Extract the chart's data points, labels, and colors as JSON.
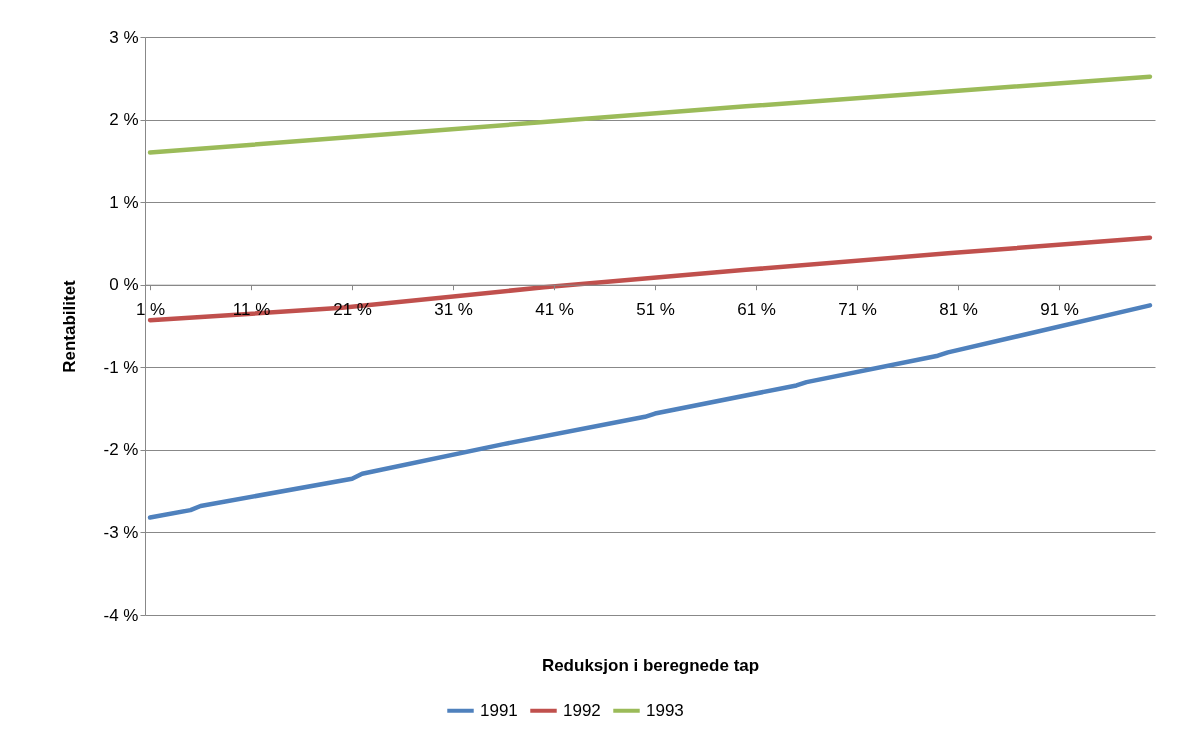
{
  "chart_data": {
    "type": "line",
    "xlabel": "Reduksjon i beregnede tap",
    "ylabel": "Rentabilitet",
    "xlim": [
      0.5,
      100.5
    ],
    "xticks": [
      {
        "value": 1,
        "label": "1 %"
      },
      {
        "value": 11,
        "label": "11 %"
      },
      {
        "value": 21,
        "label": "21 %"
      },
      {
        "value": 31,
        "label": "31 %"
      },
      {
        "value": 41,
        "label": "41 %"
      },
      {
        "value": 51,
        "label": "51 %"
      },
      {
        "value": 61,
        "label": "61 %"
      },
      {
        "value": 71,
        "label": "71 %"
      },
      {
        "value": 81,
        "label": "81 %"
      },
      {
        "value": 91,
        "label": "91 %"
      }
    ],
    "ylim": [
      -4,
      3
    ],
    "yticks": [
      {
        "value": -4,
        "label": "-4 %"
      },
      {
        "value": -3,
        "label": "-3 %"
      },
      {
        "value": -2,
        "label": "-2 %"
      },
      {
        "value": -1,
        "label": "-1 %"
      },
      {
        "value": 0,
        "label": "0 %"
      },
      {
        "value": 1,
        "label": "1 %"
      },
      {
        "value": 2,
        "label": "2 %"
      },
      {
        "value": 3,
        "label": "3 %"
      }
    ],
    "grid": "y",
    "legend": "bottom",
    "marker": "none",
    "line_style": "solid",
    "series": [
      {
        "name": "1991",
        "color": "#4f81bd",
        "x": [
          1,
          5,
          6,
          21,
          22,
          36,
          50,
          51,
          65,
          66,
          79,
          80,
          100
        ],
        "values": [
          -2.82,
          -2.73,
          -2.68,
          -2.35,
          -2.29,
          -1.93,
          -1.6,
          -1.56,
          -1.22,
          -1.18,
          -0.86,
          -0.82,
          -0.25
        ]
      },
      {
        "name": "1992",
        "color": "#c0504d",
        "x": [
          1,
          20,
          40,
          60,
          80,
          100
        ],
        "values": [
          -0.43,
          -0.28,
          -0.03,
          0.18,
          0.38,
          0.57
        ]
      },
      {
        "name": "1993",
        "color": "#9bbb59",
        "x": [
          1,
          20,
          40,
          60,
          80,
          100
        ],
        "values": [
          1.6,
          1.78,
          1.97,
          2.16,
          2.34,
          2.52
        ]
      }
    ]
  }
}
